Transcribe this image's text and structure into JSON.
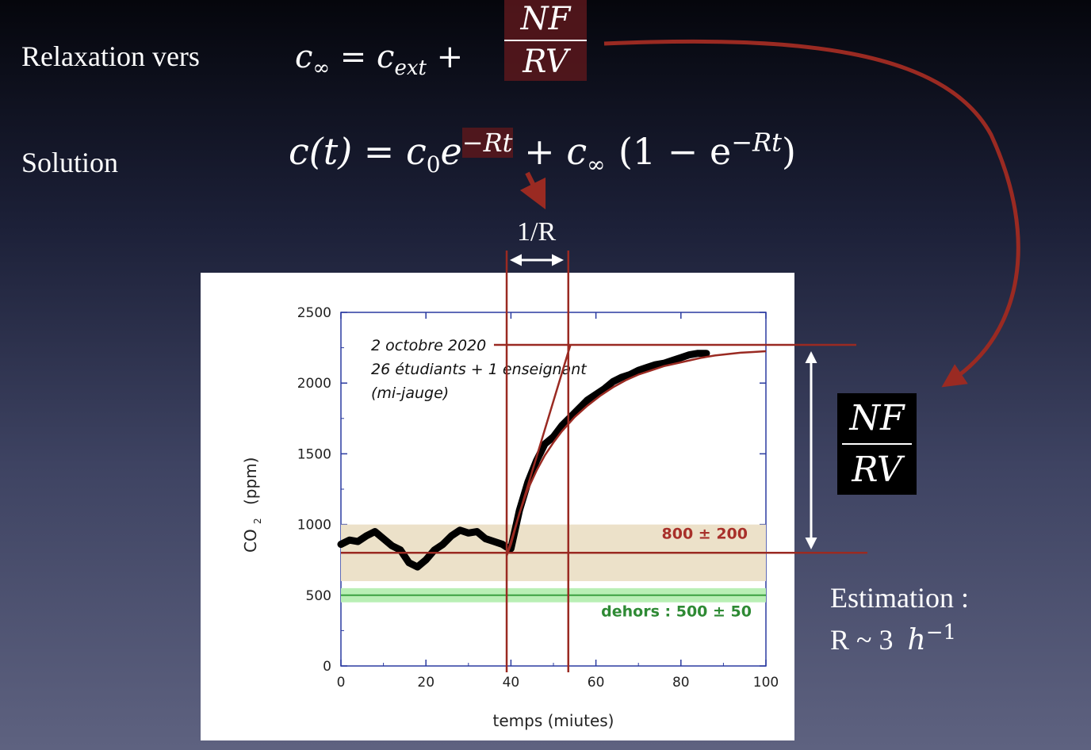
{
  "labels": {
    "relaxation": "Relaxation vers",
    "solution": "Solution",
    "one_over_r": "1/R",
    "estimation_line1": "Estimation :",
    "estimation_line2": "R ~ 3"
  },
  "equations": {
    "c_inf": "c",
    "c_inf_sub": "∞",
    "equals": " = ",
    "c_ext": "c",
    "c_ext_sub": "ext",
    "plus": " + ",
    "frac_num": "NF",
    "frac_den": "RV",
    "ct": "c(t)",
    "c0": "c",
    "c0_sub": "0",
    "e": "e",
    "exp_rt": "−Rt",
    "one_minus": "(1 − e",
    "close": ")",
    "h_unit": "h",
    "h_exp": "−1"
  },
  "colors": {
    "accent_red": "#9a2a22",
    "data": "#000000",
    "band_tan": "#ece1c9",
    "band_green": "#b9efb5",
    "axis": "#2a3aa0"
  },
  "chart_data": {
    "type": "line",
    "xlabel": "temps   (miutes)",
    "ylabel": "CO",
    "ylabel_sub": "2",
    "ylabel_unit": "(ppm)",
    "xlim": [
      0,
      100
    ],
    "ylim": [
      0,
      2500
    ],
    "x_ticks": [
      "0",
      "20",
      "40",
      "60",
      "80",
      "100"
    ],
    "y_ticks": [
      "0",
      "500",
      "1000",
      "1500",
      "2000",
      "2500"
    ],
    "annotations": [
      "2 octobre 2020",
      "26 étudiants + 1 enseignant",
      "(mi-jauge)"
    ],
    "band_indoor": {
      "label": "800 ± 200",
      "y": [
        600,
        1000
      ]
    },
    "band_outdoor": {
      "label": "dehors : 500 ± 50",
      "y": [
        450,
        550
      ]
    },
    "measured": {
      "x": [
        0,
        2,
        4,
        6,
        8,
        10,
        12,
        14,
        16,
        18,
        20,
        22,
        24,
        26,
        28,
        30,
        32,
        34,
        36,
        38,
        39,
        40,
        42,
        44,
        46,
        48,
        50,
        52,
        54,
        56,
        58,
        60,
        62,
        64,
        66,
        68,
        70,
        72,
        74,
        76,
        78,
        80,
        82,
        84,
        86
      ],
      "y": [
        860,
        890,
        880,
        920,
        950,
        900,
        850,
        820,
        730,
        700,
        750,
        820,
        860,
        920,
        960,
        940,
        950,
        900,
        880,
        860,
        840,
        830,
        1100,
        1300,
        1450,
        1570,
        1620,
        1700,
        1760,
        1820,
        1880,
        1920,
        1960,
        2010,
        2040,
        2060,
        2090,
        2110,
        2130,
        2140,
        2160,
        2180,
        2200,
        2210,
        2210
      ]
    },
    "fit": {
      "x": [
        39,
        40,
        42,
        44,
        46,
        48,
        50,
        52,
        55,
        58,
        61,
        64,
        67,
        70,
        73,
        76,
        79,
        82,
        85,
        88,
        91,
        94,
        97,
        100
      ],
      "y": [
        780,
        860,
        1080,
        1250,
        1380,
        1490,
        1580,
        1660,
        1760,
        1840,
        1910,
        1970,
        2020,
        2060,
        2090,
        2120,
        2140,
        2160,
        2180,
        2195,
        2205,
        2215,
        2220,
        2225
      ]
    },
    "tangent": {
      "x": [
        39,
        54
      ],
      "y": [
        780,
        2270
      ]
    },
    "level_lines": {
      "y_asymptote": 2270,
      "y_initial": 800
    },
    "vlines_x": [
      39,
      53.5
    ]
  }
}
